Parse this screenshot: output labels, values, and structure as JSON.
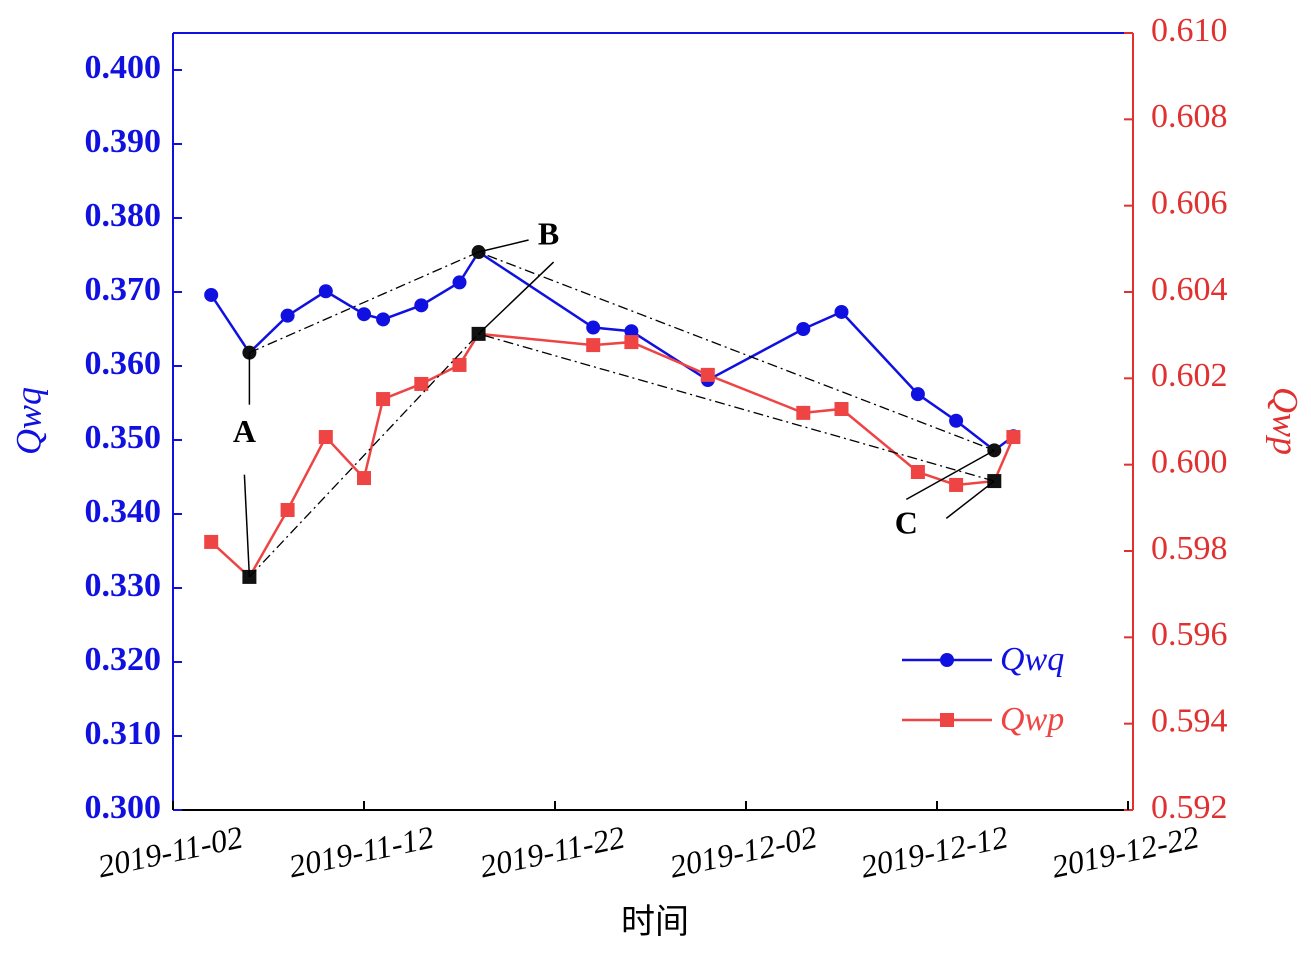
{
  "chart_data": {
    "type": "line",
    "x_label": "时间",
    "y_label": "Qwq",
    "y2_label": "Qwp",
    "x": [
      "2019-11-04",
      "2019-11-06",
      "2019-11-08",
      "2019-11-10",
      "2019-11-12",
      "2019-11-13",
      "2019-11-15",
      "2019-11-17",
      "2019-11-18",
      "2019-11-24",
      "2019-11-26",
      "2019-11-30",
      "2019-12-05",
      "2019-12-07",
      "2019-12-11",
      "2019-12-13",
      "2019-12-15",
      "2019-12-16"
    ],
    "series": [
      {
        "name": "Qwq",
        "color": "#1010e0",
        "marker": "circle",
        "values": [
          0.3696,
          0.3618,
          0.3668,
          0.3701,
          0.367,
          0.3663,
          0.3682,
          0.3713,
          0.3754,
          0.3652,
          0.3647,
          0.3581,
          0.365,
          0.3673,
          0.3562,
          0.3526,
          0.3486,
          0.3505
        ]
      },
      {
        "name": "Qwp",
        "color": "#ee4444",
        "marker": "square",
        "axis": "y2",
        "values": [
          0.59821,
          0.5974,
          0.59895,
          0.60064,
          0.59969,
          0.60152,
          0.60187,
          0.60231,
          0.60303,
          0.60277,
          0.60284,
          0.60208,
          0.6012,
          0.60129,
          0.59983,
          0.59953,
          0.59962,
          0.60064
        ]
      }
    ],
    "annotations": [
      {
        "text": "A",
        "x": "2019-11-06"
      },
      {
        "text": "B",
        "x": "2019-11-18"
      },
      {
        "text": "C",
        "x": "2019-12-15"
      }
    ],
    "xlim": [
      "2019-11-02",
      "2019-12-22"
    ],
    "xticks": [
      "2019-11-02",
      "2019-11-12",
      "2019-11-22",
      "2019-12-02",
      "2019-12-12",
      "2019-12-22"
    ],
    "ylim": [
      0.3,
      0.405
    ],
    "yticks": [
      {
        "value": 0.3,
        "label": "0.300"
      },
      {
        "value": 0.31,
        "label": "0.310"
      },
      {
        "value": 0.32,
        "label": "0.320"
      },
      {
        "value": 0.33,
        "label": "0.330"
      },
      {
        "value": 0.34,
        "label": "0.340"
      },
      {
        "value": 0.35,
        "label": "0.350"
      },
      {
        "value": 0.36,
        "label": "0.360"
      },
      {
        "value": 0.37,
        "label": "0.370"
      },
      {
        "value": 0.38,
        "label": "0.380"
      },
      {
        "value": 0.39,
        "label": "0.390"
      },
      {
        "value": 0.4,
        "label": "0.400"
      }
    ],
    "y2lim": [
      0.592,
      0.61
    ],
    "y2ticks": [
      {
        "value": 0.592,
        "label": "0.592"
      },
      {
        "value": 0.594,
        "label": "0.594"
      },
      {
        "value": 0.596,
        "label": "0.596"
      },
      {
        "value": 0.598,
        "label": "0.598"
      },
      {
        "value": 0.6,
        "label": "0.600"
      },
      {
        "value": 0.602,
        "label": "0.602"
      },
      {
        "value": 0.604,
        "label": "0.604"
      },
      {
        "value": 0.606,
        "label": "0.606"
      },
      {
        "value": 0.608,
        "label": "0.608"
      },
      {
        "value": 0.61,
        "label": "0.610"
      }
    ],
    "y_axis_color": "#1010e0",
    "y2_axis_color": "#e03030",
    "grid": false
  }
}
